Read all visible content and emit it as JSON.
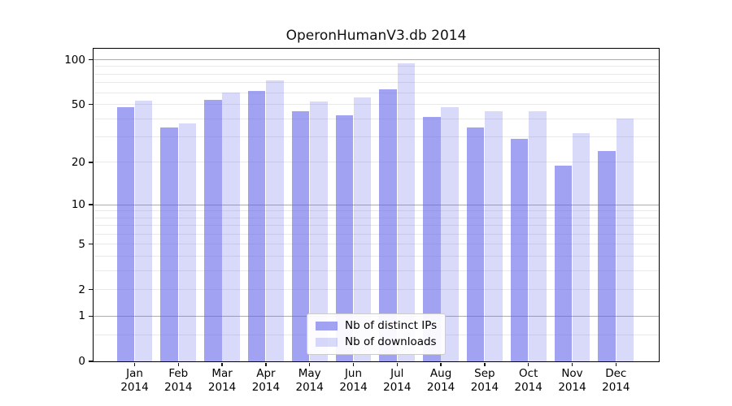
{
  "title": "OperonHumanV3.db 2014",
  "chart_data": {
    "type": "bar",
    "title": "OperonHumanV3.db 2014",
    "categories": [
      "Jan 2014",
      "Feb 2014",
      "Mar 2014",
      "Apr 2014",
      "May 2014",
      "Jun 2014",
      "Jul 2014",
      "Aug 2014",
      "Sep 2014",
      "Oct 2014",
      "Nov 2014",
      "Dec 2014"
    ],
    "series": [
      {
        "name": "Nb of distinct IPs",
        "color": "rgba(95,95,232,0.58)",
        "color_on_white": "#a2a2f1",
        "values": [
          48,
          35,
          54,
          62,
          45,
          42,
          63,
          41,
          35,
          29,
          19,
          24
        ]
      },
      {
        "name": "Nb of downloads",
        "color": "rgba(95,95,232,0.24)",
        "color_on_white": "#d8d8f9",
        "values": [
          53,
          37,
          60,
          73,
          52,
          56,
          95,
          48,
          45,
          45,
          32,
          40
        ]
      }
    ],
    "xlabel": "",
    "ylabel": "",
    "yscale": "log1p",
    "ylim": [
      0,
      120
    ],
    "yticks": [
      0,
      1,
      2,
      5,
      10,
      20,
      50,
      100
    ],
    "gridlines_major": [
      1,
      10,
      100
    ],
    "gridlines_minor": [
      0.5,
      2,
      3,
      4,
      5,
      6,
      7,
      8,
      9,
      20,
      30,
      40,
      50,
      60,
      70,
      80,
      90
    ],
    "grid": true,
    "legend_position": "lower center"
  },
  "colors": {
    "background": "#ffffff",
    "axis": "#000000",
    "grid_major": "#adadad",
    "grid_minor": "#e9e9e9",
    "text": "#000000"
  }
}
